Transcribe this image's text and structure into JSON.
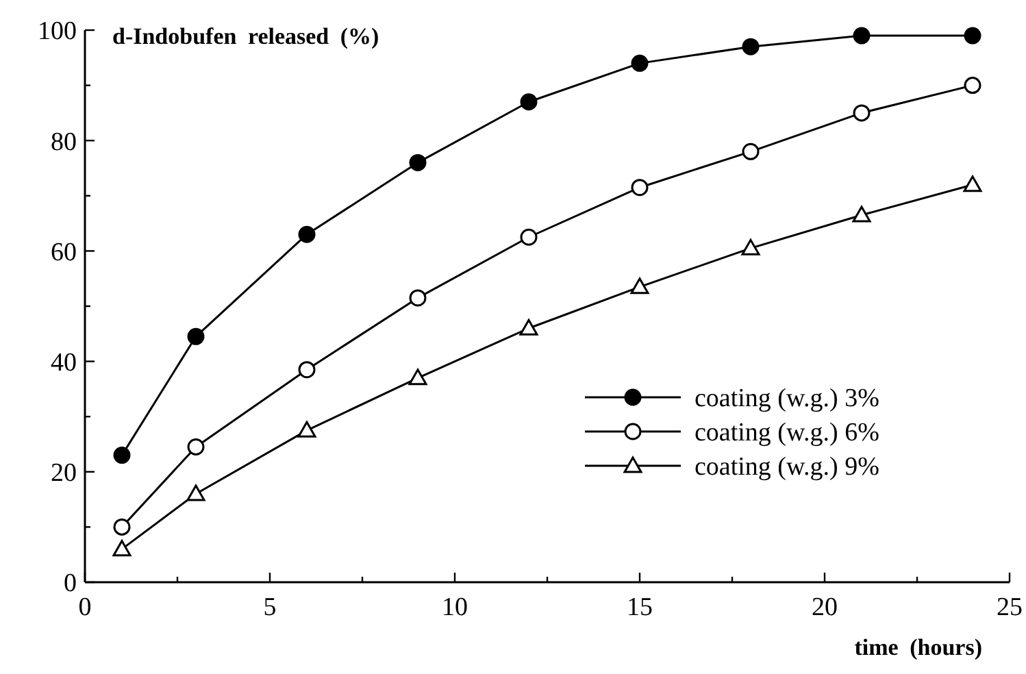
{
  "chart_data": {
    "type": "line",
    "title": "d-Indobufen released (%)",
    "xlabel": "time (hours)",
    "x": [
      1,
      3,
      6,
      9,
      12,
      15,
      18,
      21,
      24
    ],
    "series": [
      {
        "name": "coating (w.g.) 3%",
        "color": "#000000",
        "marker": "circle",
        "values": [
          23,
          44.5,
          63,
          76,
          87,
          94,
          97,
          99,
          99
        ]
      },
      {
        "name": "coating (w.g.) 6%",
        "color": "#000000",
        "marker": "open-circle",
        "values": [
          10,
          24.5,
          38.5,
          51.5,
          62.5,
          71.5,
          78,
          85,
          90
        ]
      },
      {
        "name": "coating (w.g.) 9%",
        "color": "#000000",
        "marker": "triangle",
        "values": [
          6,
          16,
          27.5,
          37,
          46,
          53.5,
          60.5,
          66.5,
          72
        ]
      }
    ],
    "xlim": [
      0,
      25
    ],
    "ylim": [
      0,
      100
    ],
    "xticks": [
      0,
      {
        "value": 2.5,
        "label": null
      },
      5,
      {
        "value": 7.5,
        "label": null
      },
      10,
      {
        "value": 12.5,
        "label": null
      },
      15,
      {
        "value": 17.5,
        "label": null
      },
      20,
      {
        "value": 22.5,
        "label": null
      },
      25
    ],
    "yticks": [
      0,
      {
        "value": 10,
        "label": null
      },
      20,
      {
        "value": 30,
        "label": null
      },
      40,
      {
        "value": 50,
        "label": null
      },
      60,
      {
        "value": 70,
        "label": null
      },
      80,
      {
        "value": 90,
        "label": null
      },
      100
    ],
    "grid": false,
    "legend": "bottom right"
  }
}
